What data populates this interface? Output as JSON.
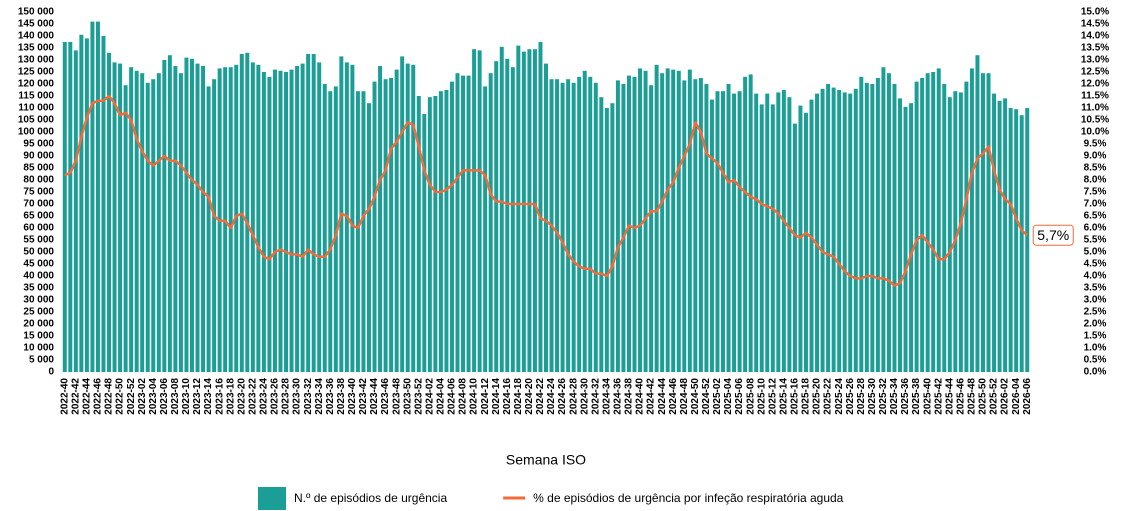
{
  "chart_data": {
    "type": "bar_line",
    "x_label": "Semana ISO",
    "categories": [
      "2022-40",
      null,
      "2022-42",
      null,
      "2022-44",
      null,
      "2022-46",
      null,
      "2022-48",
      null,
      "2022-50",
      null,
      "2022-52",
      null,
      "2023-02",
      null,
      "2023-04",
      null,
      "2023-06",
      null,
      "2023-08",
      null,
      "2023-10",
      null,
      "2023-12",
      null,
      "2023-14",
      null,
      "2023-16",
      null,
      "2023-18",
      null,
      "2023-20",
      null,
      "2023-22",
      null,
      "2023-24",
      null,
      "2023-26",
      null,
      "2023-28",
      null,
      "2023-30",
      null,
      "2023-32",
      null,
      "2023-34",
      null,
      "2023-36",
      null,
      "2023-38",
      null,
      "2023-40",
      null,
      "2023-42",
      null,
      "2023-44",
      null,
      "2023-46",
      null,
      "2023-48",
      null,
      "2023-50",
      null,
      "2023-52",
      null,
      "2024-02",
      null,
      "2024-04",
      null,
      "2024-06",
      null,
      "2024-08",
      null,
      "2024-10",
      null,
      "2024-12",
      null,
      "2024-14",
      null,
      "2024-16",
      null,
      "2024-18",
      null,
      "2024-20",
      null,
      "2024-22",
      null,
      "2024-24",
      null,
      "2024-26",
      null,
      "2024-28",
      null,
      "2024-30",
      null,
      "2024-32",
      null,
      "2024-34",
      null,
      "2024-36",
      null,
      "2024-38",
      null,
      "2024-40",
      null,
      "2024-42",
      null,
      "2024-44",
      null,
      "2024-46",
      null,
      "2024-48",
      null,
      "2024-50",
      null,
      "2024-52",
      null,
      "2025-02",
      null,
      "2025-04",
      null,
      "2025-06",
      null,
      "2025-08",
      null,
      "2025-10",
      null,
      "2025-12",
      null,
      "2025-14",
      null,
      "2025-16",
      null,
      "2025-18",
      null,
      "2025-20",
      null,
      "2025-22",
      null,
      "2025-24",
      null,
      "2025-26",
      null,
      "2025-28",
      null,
      "2025-30",
      null,
      "2025-32",
      null,
      "2025-34",
      null,
      "2025-36",
      null,
      "2025-38",
      null,
      "2025-40",
      null,
      "2025-42",
      null,
      "2025-44",
      null,
      "2025-46",
      null,
      "2025-48",
      null,
      "2025-50",
      null,
      "2025-52",
      null,
      "2026-02",
      null,
      "2026-04",
      null,
      "2026-06"
    ],
    "series": [
      {
        "name": "N.º de episódios de urgência",
        "color": "#1b9e96",
        "kind": "bar",
        "axis": "y",
        "values": [
          137500,
          137500,
          134000,
          140500,
          139000,
          146000,
          146000,
          140000,
          133000,
          129000,
          128500,
          119500,
          127000,
          125500,
          124500,
          120500,
          122000,
          124500,
          130000,
          132000,
          127500,
          124500,
          131000,
          130500,
          128500,
          127500,
          119000,
          122000,
          126500,
          127000,
          127000,
          128000,
          132500,
          133000,
          129000,
          128000,
          125000,
          123000,
          126000,
          125500,
          125000,
          126000,
          127500,
          128500,
          132500,
          132500,
          129000,
          120000,
          117000,
          119000,
          131500,
          129000,
          128000,
          117000,
          117000,
          112000,
          121000,
          127500,
          122000,
          122500,
          126000,
          131500,
          128500,
          128000,
          115000,
          107500,
          114500,
          115000,
          117000,
          117500,
          121000,
          124500,
          123500,
          123500,
          134500,
          134000,
          119000,
          124500,
          129500,
          135500,
          130500,
          127000,
          136000,
          133500,
          134500,
          134500,
          137500,
          128500,
          122000,
          122000,
          120500,
          122000,
          120500,
          123000,
          125500,
          123000,
          120500,
          114500,
          110000,
          112000,
          121500,
          120000,
          123500,
          123000,
          126500,
          125500,
          119500,
          128000,
          124500,
          126500,
          126000,
          125500,
          121500,
          126000,
          122000,
          122500,
          120000,
          113500,
          117000,
          117000,
          120000,
          116000,
          117000,
          123000,
          124000,
          116000,
          111500,
          116000,
          111500,
          116500,
          117500,
          114500,
          103500,
          111000,
          108000,
          113500,
          116000,
          118000,
          120000,
          118500,
          117500,
          116500,
          116000,
          118000,
          123000,
          120500,
          120000,
          122500,
          127000,
          124500,
          120000,
          114000,
          110500,
          112000,
          121000,
          122500,
          124500,
          125000,
          126500,
          120000,
          114500,
          117000,
          116500,
          121000,
          126500,
          132000,
          124500,
          124500,
          116000,
          113000,
          114000,
          110000,
          109500,
          107000,
          110000
        ]
      },
      {
        "name": "% de episódios de urgência por infeção respiratória aguda",
        "color": "#f26b3a",
        "kind": "line",
        "axis": "y2",
        "end_label": "5,7%",
        "values": [
          8.2,
          8.3,
          8.8,
          9.8,
          10.6,
          11.2,
          11.3,
          11.3,
          11.5,
          11.2,
          10.7,
          10.8,
          10.5,
          9.7,
          9.2,
          8.8,
          8.6,
          8.8,
          9.0,
          8.8,
          8.8,
          8.6,
          8.3,
          8.0,
          7.8,
          7.5,
          7.3,
          6.5,
          6.3,
          6.3,
          6.0,
          6.5,
          6.6,
          6.2,
          5.7,
          5.2,
          4.8,
          4.7,
          5.0,
          5.1,
          5.0,
          4.9,
          4.9,
          4.8,
          5.1,
          4.9,
          4.8,
          4.8,
          5.1,
          5.7,
          6.6,
          6.5,
          6.1,
          6.0,
          6.5,
          6.8,
          7.3,
          8.0,
          8.4,
          9.3,
          9.6,
          10.0,
          10.4,
          10.3,
          9.4,
          8.4,
          7.8,
          7.5,
          7.5,
          7.6,
          7.8,
          8.1,
          8.4,
          8.4,
          8.4,
          8.4,
          8.2,
          7.4,
          7.1,
          7.1,
          7.0,
          7.0,
          7.0,
          7.0,
          7.0,
          7.0,
          6.4,
          6.3,
          6.1,
          5.8,
          5.4,
          4.9,
          4.6,
          4.4,
          4.3,
          4.3,
          4.1,
          4.1,
          4.0,
          4.4,
          5.2,
          5.6,
          6.1,
          6.0,
          6.1,
          6.4,
          6.7,
          6.7,
          7.1,
          7.6,
          7.9,
          8.5,
          9.0,
          9.5,
          10.4,
          10.0,
          9.1,
          8.9,
          8.7,
          8.3,
          7.9,
          8.0,
          7.7,
          7.5,
          7.3,
          7.2,
          7.0,
          6.9,
          6.8,
          6.6,
          6.3,
          6.0,
          5.7,
          5.6,
          5.8,
          5.6,
          5.3,
          5.0,
          4.9,
          4.8,
          4.5,
          4.2,
          4.0,
          3.9,
          3.9,
          4.0,
          4.0,
          3.9,
          3.9,
          3.8,
          3.6,
          3.7,
          4.2,
          4.9,
          5.5,
          5.7,
          5.4,
          5.1,
          4.7,
          4.7,
          5.0,
          5.5,
          6.2,
          7.2,
          8.3,
          8.9,
          9.1,
          9.4,
          8.4,
          7.6,
          7.2,
          7.0,
          6.4,
          5.9,
          5.7
        ]
      }
    ],
    "ylim": [
      0,
      150000
    ],
    "yticks": [
      0,
      {
        "value": 5000,
        "label": "5 000"
      },
      {
        "value": 10000,
        "label": "10 000"
      },
      {
        "value": 15000,
        "label": "15 000"
      },
      {
        "value": 20000,
        "label": "20 000"
      },
      {
        "value": 25000,
        "label": "25 000"
      },
      {
        "value": 30000,
        "label": "30 000"
      },
      {
        "value": 35000,
        "label": "35 000"
      },
      {
        "value": 40000,
        "label": "40 000"
      },
      {
        "value": 45000,
        "label": "45 000"
      },
      {
        "value": 50000,
        "label": "50 000"
      },
      {
        "value": 55000,
        "label": "55 000"
      },
      {
        "value": 60000,
        "label": "60 000"
      },
      {
        "value": 65000,
        "label": "65 000"
      },
      {
        "value": 70000,
        "label": "70 000"
      },
      {
        "value": 75000,
        "label": "75 000"
      },
      {
        "value": 80000,
        "label": "80 000"
      },
      {
        "value": 85000,
        "label": "85 000"
      },
      {
        "value": 90000,
        "label": "90 000"
      },
      {
        "value": 95000,
        "label": "95 000"
      },
      {
        "value": 100000,
        "label": "100 000"
      },
      {
        "value": 105000,
        "label": "105 000"
      },
      {
        "value": 110000,
        "label": "110 000"
      },
      {
        "value": 115000,
        "label": "115 000"
      },
      {
        "value": 120000,
        "label": "120 000"
      },
      {
        "value": 125000,
        "label": "125 000"
      },
      {
        "value": 130000,
        "label": "130 000"
      },
      {
        "value": 135000,
        "label": "135 000"
      },
      {
        "value": 140000,
        "label": "140 000"
      },
      {
        "value": 145000,
        "label": "145 000"
      },
      {
        "value": 150000,
        "label": "150 000"
      }
    ],
    "y2lim": [
      0,
      15
    ],
    "y2ticks": [
      {
        "value": 0,
        "label": "0.0%"
      },
      {
        "value": 0.5,
        "label": "0.5%"
      },
      {
        "value": 1,
        "label": "1.0%"
      },
      {
        "value": 1.5,
        "label": "1.5%"
      },
      {
        "value": 2,
        "label": "2.0%"
      },
      {
        "value": 2.5,
        "label": "2.5%"
      },
      {
        "value": 3,
        "label": "3.0%"
      },
      {
        "value": 3.5,
        "label": "3.5%"
      },
      {
        "value": 4,
        "label": "4.0%"
      },
      {
        "value": 4.5,
        "label": "4.5%"
      },
      {
        "value": 5,
        "label": "5.0%"
      },
      {
        "value": 5.5,
        "label": "5.5%"
      },
      {
        "value": 6,
        "label": "6.0%"
      },
      {
        "value": 6.5,
        "label": "6.5%"
      },
      {
        "value": 7,
        "label": "7.0%"
      },
      {
        "value": 7.5,
        "label": "7.5%"
      },
      {
        "value": 8,
        "label": "8.0%"
      },
      {
        "value": 8.5,
        "label": "8.5%"
      },
      {
        "value": 9,
        "label": "9.0%"
      },
      {
        "value": 9.5,
        "label": "9.5%"
      },
      {
        "value": 10,
        "label": "10.0%"
      },
      {
        "value": 10.5,
        "label": "10.5%"
      },
      {
        "value": 11,
        "label": "11.0%"
      },
      {
        "value": 11.5,
        "label": "11.5%"
      },
      {
        "value": 12,
        "label": "12.0%"
      },
      {
        "value": 12.5,
        "label": "12.5%"
      },
      {
        "value": 13,
        "label": "13.0%"
      },
      {
        "value": 13.5,
        "label": "13.5%"
      },
      {
        "value": 14,
        "label": "14.0%"
      },
      {
        "value": 14.5,
        "label": "14.5%"
      },
      {
        "value": 15,
        "label": "15.0%"
      }
    ],
    "grid": false,
    "legend": "bottom"
  }
}
